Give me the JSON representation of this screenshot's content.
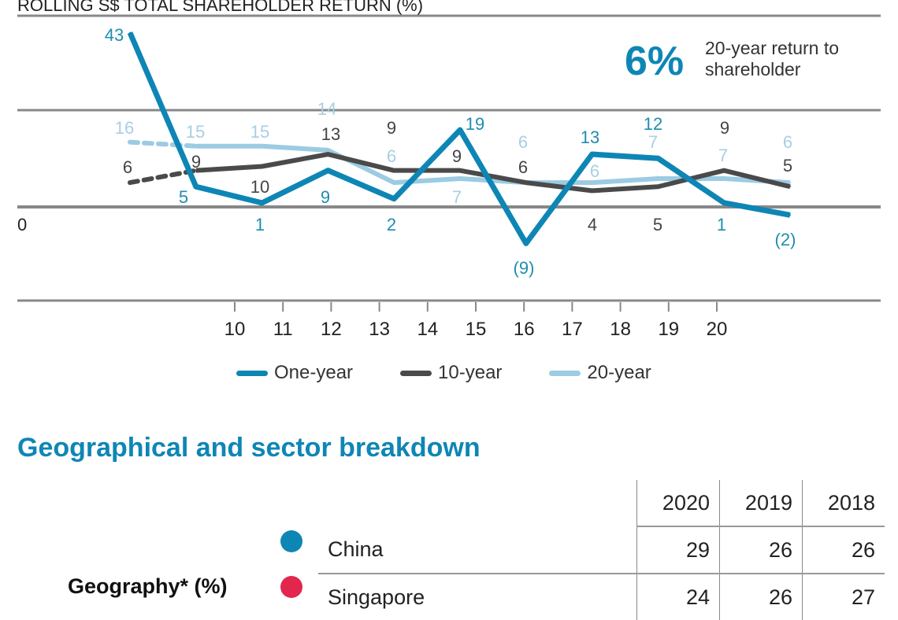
{
  "chart_data": {
    "type": "line",
    "title": "ROLLING S$ TOTAL SHAREHOLDER RETURN (%)",
    "x_tick_labels": [
      "10",
      "11",
      "12",
      "13",
      "14",
      "15",
      "16",
      "17",
      "18",
      "19",
      "20"
    ],
    "y_zero_label": "0",
    "grid": true,
    "legend_placement": "bottom",
    "series": [
      {
        "name": "One-year",
        "color": "#0e86b5",
        "values": [
          43,
          5,
          1,
          9,
          2,
          19,
          -9,
          13,
          12,
          1,
          -2
        ],
        "labels": [
          "43",
          "5",
          "1",
          "9",
          "2",
          "19",
          "(9)",
          "13",
          "12",
          "1",
          "(2)"
        ]
      },
      {
        "name": "10-year",
        "color": "#4a4a4a",
        "values": [
          6,
          9,
          10,
          13,
          9,
          9,
          6,
          4,
          5,
          9,
          5
        ],
        "labels": [
          "6",
          "9",
          "10",
          "13",
          "9",
          "9",
          "6",
          "4",
          "5",
          "9",
          "5"
        ]
      },
      {
        "name": "20-year",
        "color": "#9ccbe3",
        "values": [
          16,
          15,
          15,
          14,
          6,
          7,
          6,
          6,
          7,
          7,
          6
        ],
        "labels": [
          "16",
          "15",
          "15",
          "14",
          "6",
          "7",
          "6",
          "6",
          "7",
          "7",
          "6"
        ]
      }
    ],
    "annotation": {
      "value": "6%",
      "text": "20-year return to shareholder"
    }
  },
  "section_title": "Geographical and sector breakdown",
  "table": {
    "columns": [
      "2020",
      "2019",
      "2018"
    ],
    "group_label": "Geography* (%)",
    "rows": [
      {
        "name": "China",
        "color": "#0e86b5",
        "values": [
          "29",
          "26",
          "26"
        ]
      },
      {
        "name": "Singapore",
        "color": "#e3264e",
        "values": [
          "24",
          "26",
          "27"
        ]
      }
    ]
  }
}
